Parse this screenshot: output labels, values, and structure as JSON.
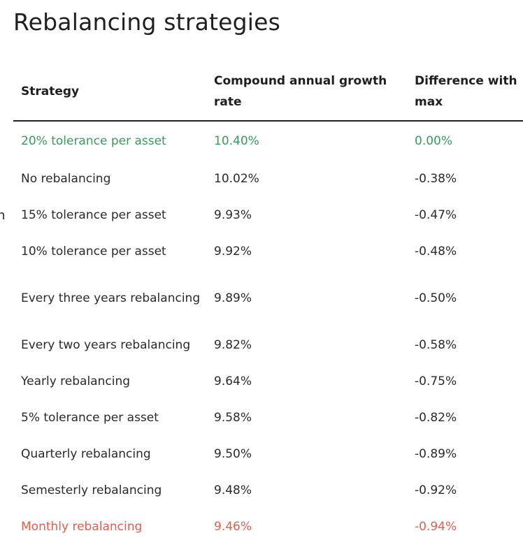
{
  "title": "Rebalancing strategies",
  "edge_fragment": "n",
  "colors": {
    "best": "#3a9a5c",
    "worst": "#e0604f",
    "text": "#2a2a2a"
  },
  "table": {
    "headers": {
      "strategy": "Strategy",
      "cagr": "Compound annual growth rate",
      "diff": "Difference with max"
    },
    "rows": [
      {
        "strategy": "20% tolerance per asset",
        "cagr": "10.40%",
        "diff": "0.00%"
      },
      {
        "strategy": "No rebalancing",
        "cagr": "10.02%",
        "diff": "-0.38%"
      },
      {
        "strategy": "15% tolerance per asset",
        "cagr": "9.93%",
        "diff": "-0.47%"
      },
      {
        "strategy": "10% tolerance per asset",
        "cagr": "9.92%",
        "diff": "-0.48%"
      },
      {
        "strategy": "Every three years rebalancing",
        "cagr": "9.89%",
        "diff": "-0.50%"
      },
      {
        "strategy": "Every two years rebalancing",
        "cagr": "9.82%",
        "diff": "-0.58%"
      },
      {
        "strategy": "Yearly rebalancing",
        "cagr": "9.64%",
        "diff": "-0.75%"
      },
      {
        "strategy": "5% tolerance per asset",
        "cagr": "9.58%",
        "diff": "-0.82%"
      },
      {
        "strategy": "Quarterly rebalancing",
        "cagr": "9.50%",
        "diff": "-0.89%"
      },
      {
        "strategy": "Semesterly rebalancing",
        "cagr": "9.48%",
        "diff": "-0.92%"
      },
      {
        "strategy": "Monthly rebalancing",
        "cagr": "9.46%",
        "diff": "-0.94%"
      }
    ]
  }
}
